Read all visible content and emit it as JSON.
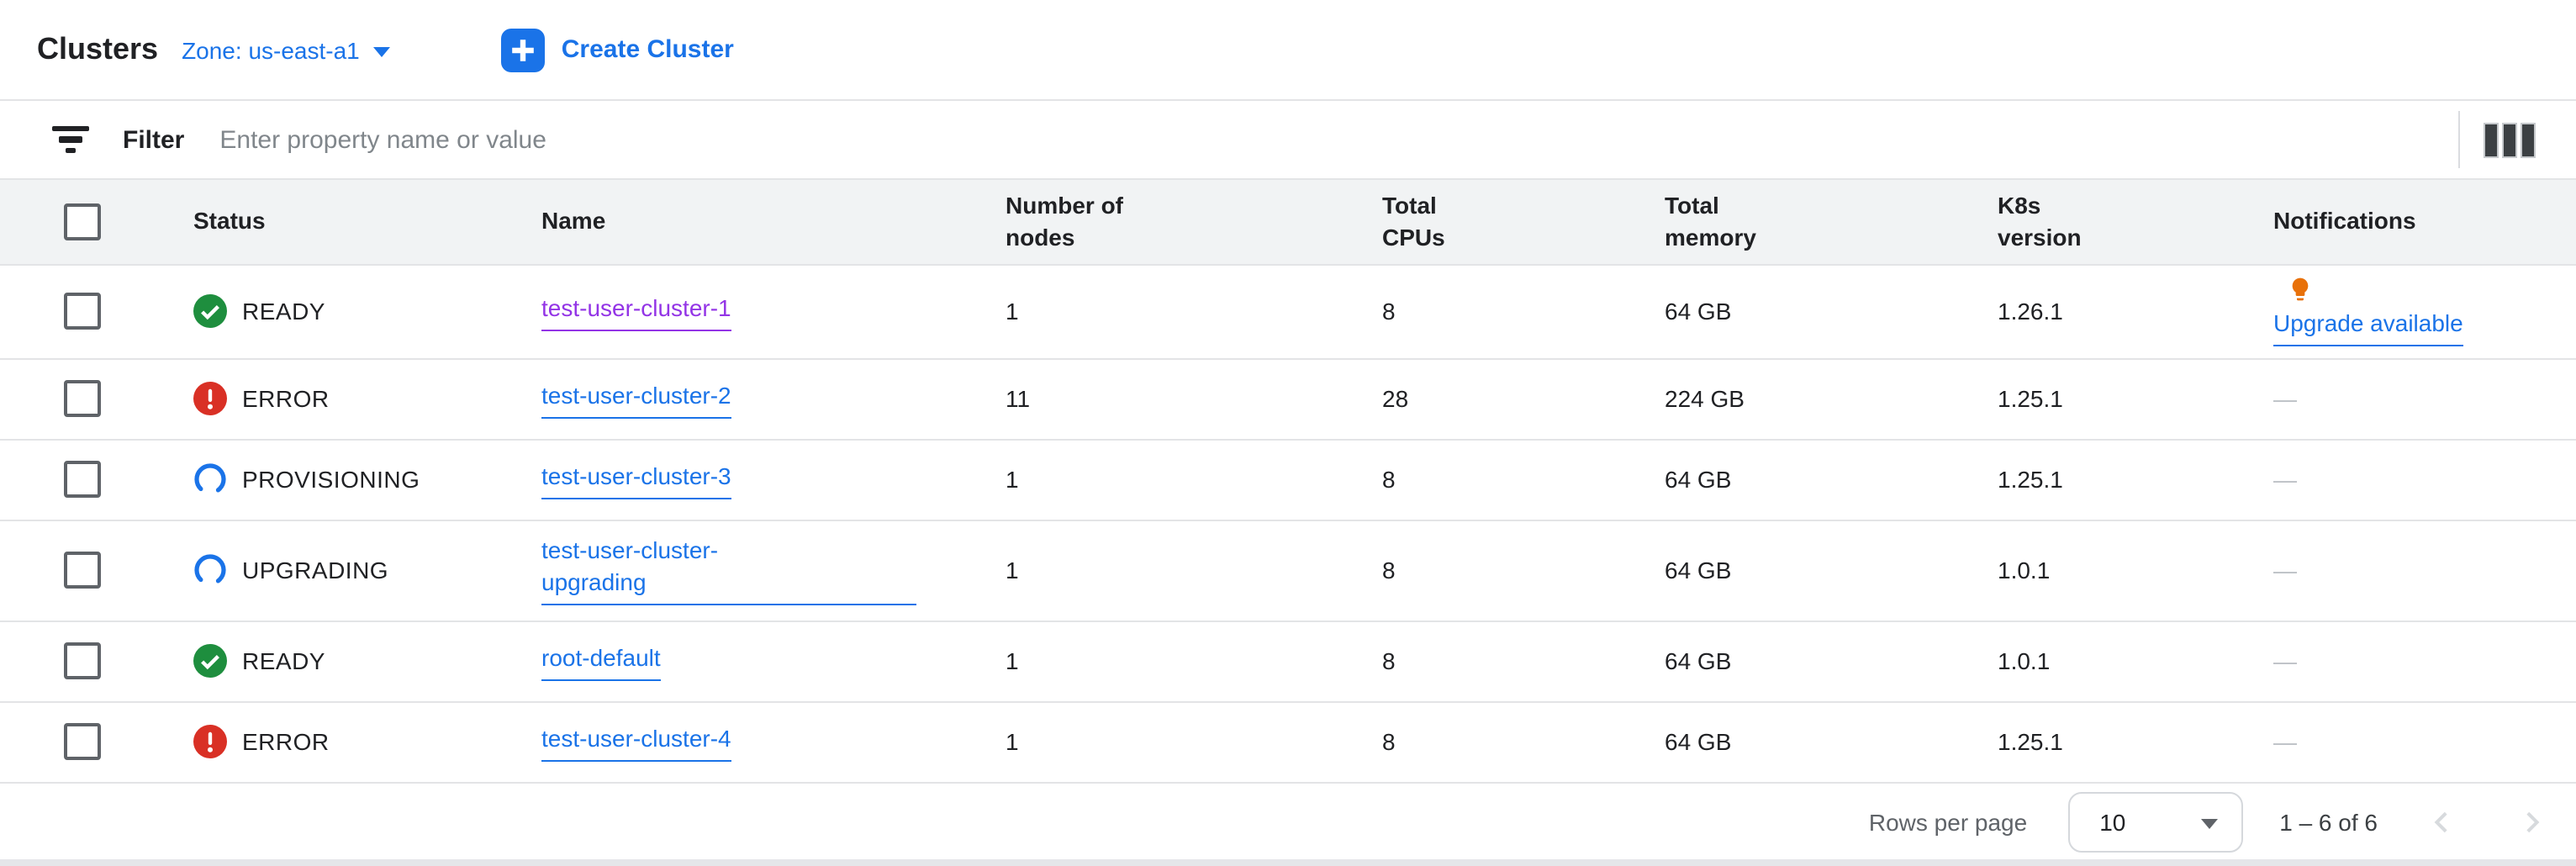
{
  "header": {
    "title": "Clusters",
    "zone_label": "Zone: us-east-a1",
    "create_button": "Create Cluster"
  },
  "filter": {
    "label": "Filter",
    "placeholder": "Enter property name or value"
  },
  "table": {
    "columns": [
      "Status",
      "Name",
      "Number of nodes",
      "Total CPUs",
      "Total memory",
      "K8s version",
      "Notifications"
    ],
    "rows": [
      {
        "status": "READY",
        "status_icon": "check-circle-icon",
        "name": "test-user-cluster-1",
        "name_color": "purple",
        "nodes": "1",
        "cpus": "8",
        "memory": "64 GB",
        "k8s_version": "1.26.1",
        "notification": "Upgrade available",
        "notification_icon": "lightbulb-icon"
      },
      {
        "status": "ERROR",
        "status_icon": "error-circle-icon",
        "name": "test-user-cluster-2",
        "name_color": "blue",
        "nodes": "11",
        "cpus": "28",
        "memory": "224 GB",
        "k8s_version": "1.25.1",
        "notification": "—",
        "notification_icon": null
      },
      {
        "status": "PROVISIONING",
        "status_icon": "spinner-arc-icon",
        "name": "test-user-cluster-3",
        "name_color": "blue",
        "nodes": "1",
        "cpus": "8",
        "memory": "64 GB",
        "k8s_version": "1.25.1",
        "notification": "—",
        "notification_icon": null
      },
      {
        "status": "UPGRADING",
        "status_icon": "spinner-arc-icon",
        "name": "test-user-cluster-upgrading",
        "name_color": "blue",
        "nodes": "1",
        "cpus": "8",
        "memory": "64 GB",
        "k8s_version": "1.0.1",
        "notification": "—",
        "notification_icon": null
      },
      {
        "status": "READY",
        "status_icon": "check-circle-icon",
        "name": "root-default",
        "name_color": "blue",
        "nodes": "1",
        "cpus": "8",
        "memory": "64 GB",
        "k8s_version": "1.0.1",
        "notification": "—",
        "notification_icon": null
      },
      {
        "status": "ERROR",
        "status_icon": "error-circle-icon",
        "name": "test-user-cluster-4",
        "name_color": "blue",
        "nodes": "1",
        "cpus": "8",
        "memory": "64 GB",
        "k8s_version": "1.25.1",
        "notification": "—",
        "notification_icon": null
      }
    ]
  },
  "pagination": {
    "rows_per_page_label": "Rows per page",
    "rows_per_page_value": "10",
    "range_label": "1 – 6 of 6",
    "prev_enabled": false,
    "next_enabled": false
  },
  "icons": {
    "create": "plus-icon",
    "zone": "chevron-down-icon",
    "filter": "filter-icon",
    "column_options": "column-display-options-icon",
    "ready": "check-circle-icon",
    "error": "error-circle-icon",
    "in_progress": "spinner-arc-icon",
    "upgrade_notification": "lightbulb-icon",
    "pagination_prev": "chevron-left-icon",
    "pagination_next": "chevron-right-icon"
  },
  "colors": {
    "accent_blue": "#1a73e8",
    "ready_green": "#1e8e3e",
    "error_red": "#d93025",
    "spinner_blue": "#1a73e8",
    "visited_purple": "#9334e6",
    "bulb_orange": "#e8710a",
    "header_row_bg": "#f1f3f4",
    "row_border": "#e3e4e6",
    "muted_text": "#5f6368",
    "dash_gray": "#bdc1c6"
  }
}
